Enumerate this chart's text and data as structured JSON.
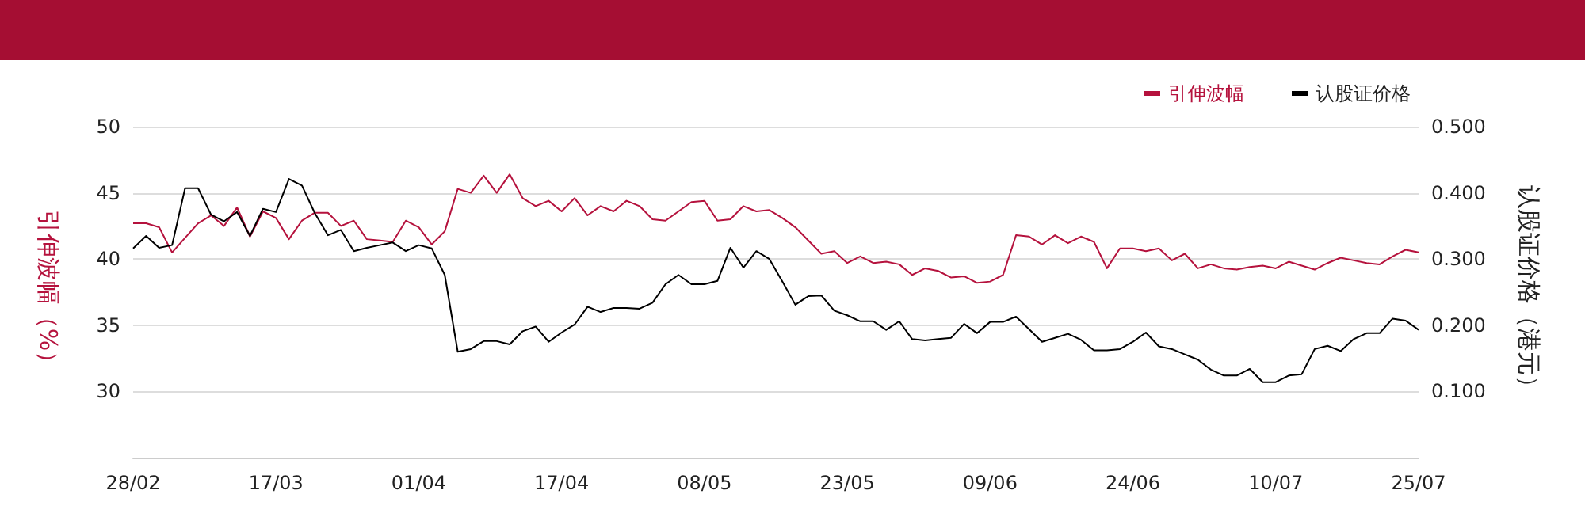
{
  "chart_data": {
    "type": "line",
    "ylabel": "引伸波幅（%）",
    "y2label": "认股证价格（港元）",
    "categories": [
      "28/02",
      null,
      null,
      null,
      null,
      null,
      null,
      null,
      null,
      null,
      null,
      "17/03",
      null,
      null,
      null,
      null,
      null,
      null,
      null,
      null,
      null,
      null,
      "01/04",
      null,
      null,
      null,
      null,
      null,
      null,
      null,
      null,
      null,
      null,
      "17/04",
      null,
      null,
      null,
      null,
      null,
      null,
      null,
      null,
      null,
      null,
      "08/05",
      null,
      null,
      null,
      null,
      null,
      null,
      null,
      null,
      null,
      null,
      "23/05",
      null,
      null,
      null,
      null,
      null,
      null,
      null,
      null,
      null,
      null,
      "09/06",
      null,
      null,
      null,
      null,
      null,
      null,
      null,
      null,
      null,
      null,
      "24/06",
      null,
      null,
      null,
      null,
      null,
      null,
      null,
      null,
      null,
      null,
      "10/07",
      null,
      null,
      null,
      null,
      null,
      null,
      null,
      null,
      null,
      null,
      "25/07"
    ],
    "series": [
      {
        "name": "引伸波幅",
        "color": "#b5123d",
        "values": [
          42.7,
          42.7,
          42.4,
          40.5,
          41.6,
          42.7,
          43.3,
          42.5,
          43.9,
          41.7,
          43.6,
          43.1,
          41.5,
          42.9,
          43.5,
          43.5,
          42.5,
          42.9,
          41.5,
          41.4,
          41.3,
          42.9,
          42.4,
          41.1,
          42.1,
          45.3,
          45.0,
          46.3,
          45.0,
          46.4,
          44.6,
          44.0,
          44.4,
          43.6,
          44.6,
          43.3,
          44.0,
          43.6,
          44.4,
          44.0,
          43.0,
          42.9,
          43.6,
          44.3,
          44.4,
          42.9,
          43.0,
          44.0,
          43.6,
          43.7,
          43.1,
          42.4,
          41.4,
          40.4,
          40.6,
          39.7,
          40.2,
          39.7,
          39.8,
          39.6,
          38.8,
          39.3,
          39.1,
          38.6,
          38.7,
          38.2,
          38.3,
          38.8,
          41.8,
          41.7,
          41.1,
          41.8,
          41.2,
          41.7,
          41.3,
          39.3,
          40.8,
          40.8,
          40.6,
          40.8,
          39.9,
          40.4,
          39.3,
          39.6,
          39.3,
          39.2,
          39.4,
          39.5,
          39.3,
          39.8,
          39.5,
          39.2,
          39.7,
          40.1,
          39.9,
          39.7,
          39.6,
          40.2,
          40.7,
          40.5
        ]
      },
      {
        "name": "认股证价格",
        "color": "#000000",
        "axis": "y2",
        "values": [
          0.316,
          0.335,
          0.317,
          0.321,
          0.407,
          0.407,
          0.367,
          0.357,
          0.371,
          0.335,
          0.376,
          0.371,
          0.421,
          0.411,
          0.369,
          0.336,
          0.344,
          0.312,
          0.317,
          0.321,
          0.325,
          0.312,
          0.321,
          0.316,
          0.276,
          0.16,
          0.164,
          0.176,
          0.176,
          0.171,
          0.191,
          0.198,
          0.175,
          0.189,
          0.201,
          0.228,
          0.22,
          0.226,
          0.226,
          0.225,
          0.234,
          0.262,
          0.276,
          0.262,
          0.262,
          0.267,
          0.317,
          0.287,
          0.312,
          0.3,
          0.266,
          0.231,
          0.244,
          0.245,
          0.222,
          0.215,
          0.206,
          0.206,
          0.193,
          0.206,
          0.179,
          0.177,
          0.179,
          0.181,
          0.202,
          0.188,
          0.205,
          0.205,
          0.213,
          0.194,
          0.175,
          0.181,
          0.187,
          0.178,
          0.162,
          0.162,
          0.164,
          0.175,
          0.189,
          0.168,
          0.164,
          0.156,
          0.148,
          0.133,
          0.124,
          0.124,
          0.134,
          0.114,
          0.114,
          0.124,
          0.126,
          0.164,
          0.169,
          0.161,
          0.179,
          0.188,
          0.188,
          0.21,
          0.207,
          0.193
        ]
      }
    ],
    "ylim": [
      25,
      50
    ],
    "yticks": [
      30,
      35,
      40,
      45,
      50
    ],
    "y2lim": [
      0,
      0.5
    ],
    "y2ticks": [
      {
        "value": 0.1,
        "label": "0.100"
      },
      {
        "value": 0.2,
        "label": "0.200"
      },
      {
        "value": 0.3,
        "label": "0.300"
      },
      {
        "value": 0.4,
        "label": "0.400"
      },
      {
        "value": 0.5,
        "label": "0.500"
      }
    ],
    "grid": "y",
    "legend": "top right",
    "marker": "none",
    "line_style": "solid"
  }
}
